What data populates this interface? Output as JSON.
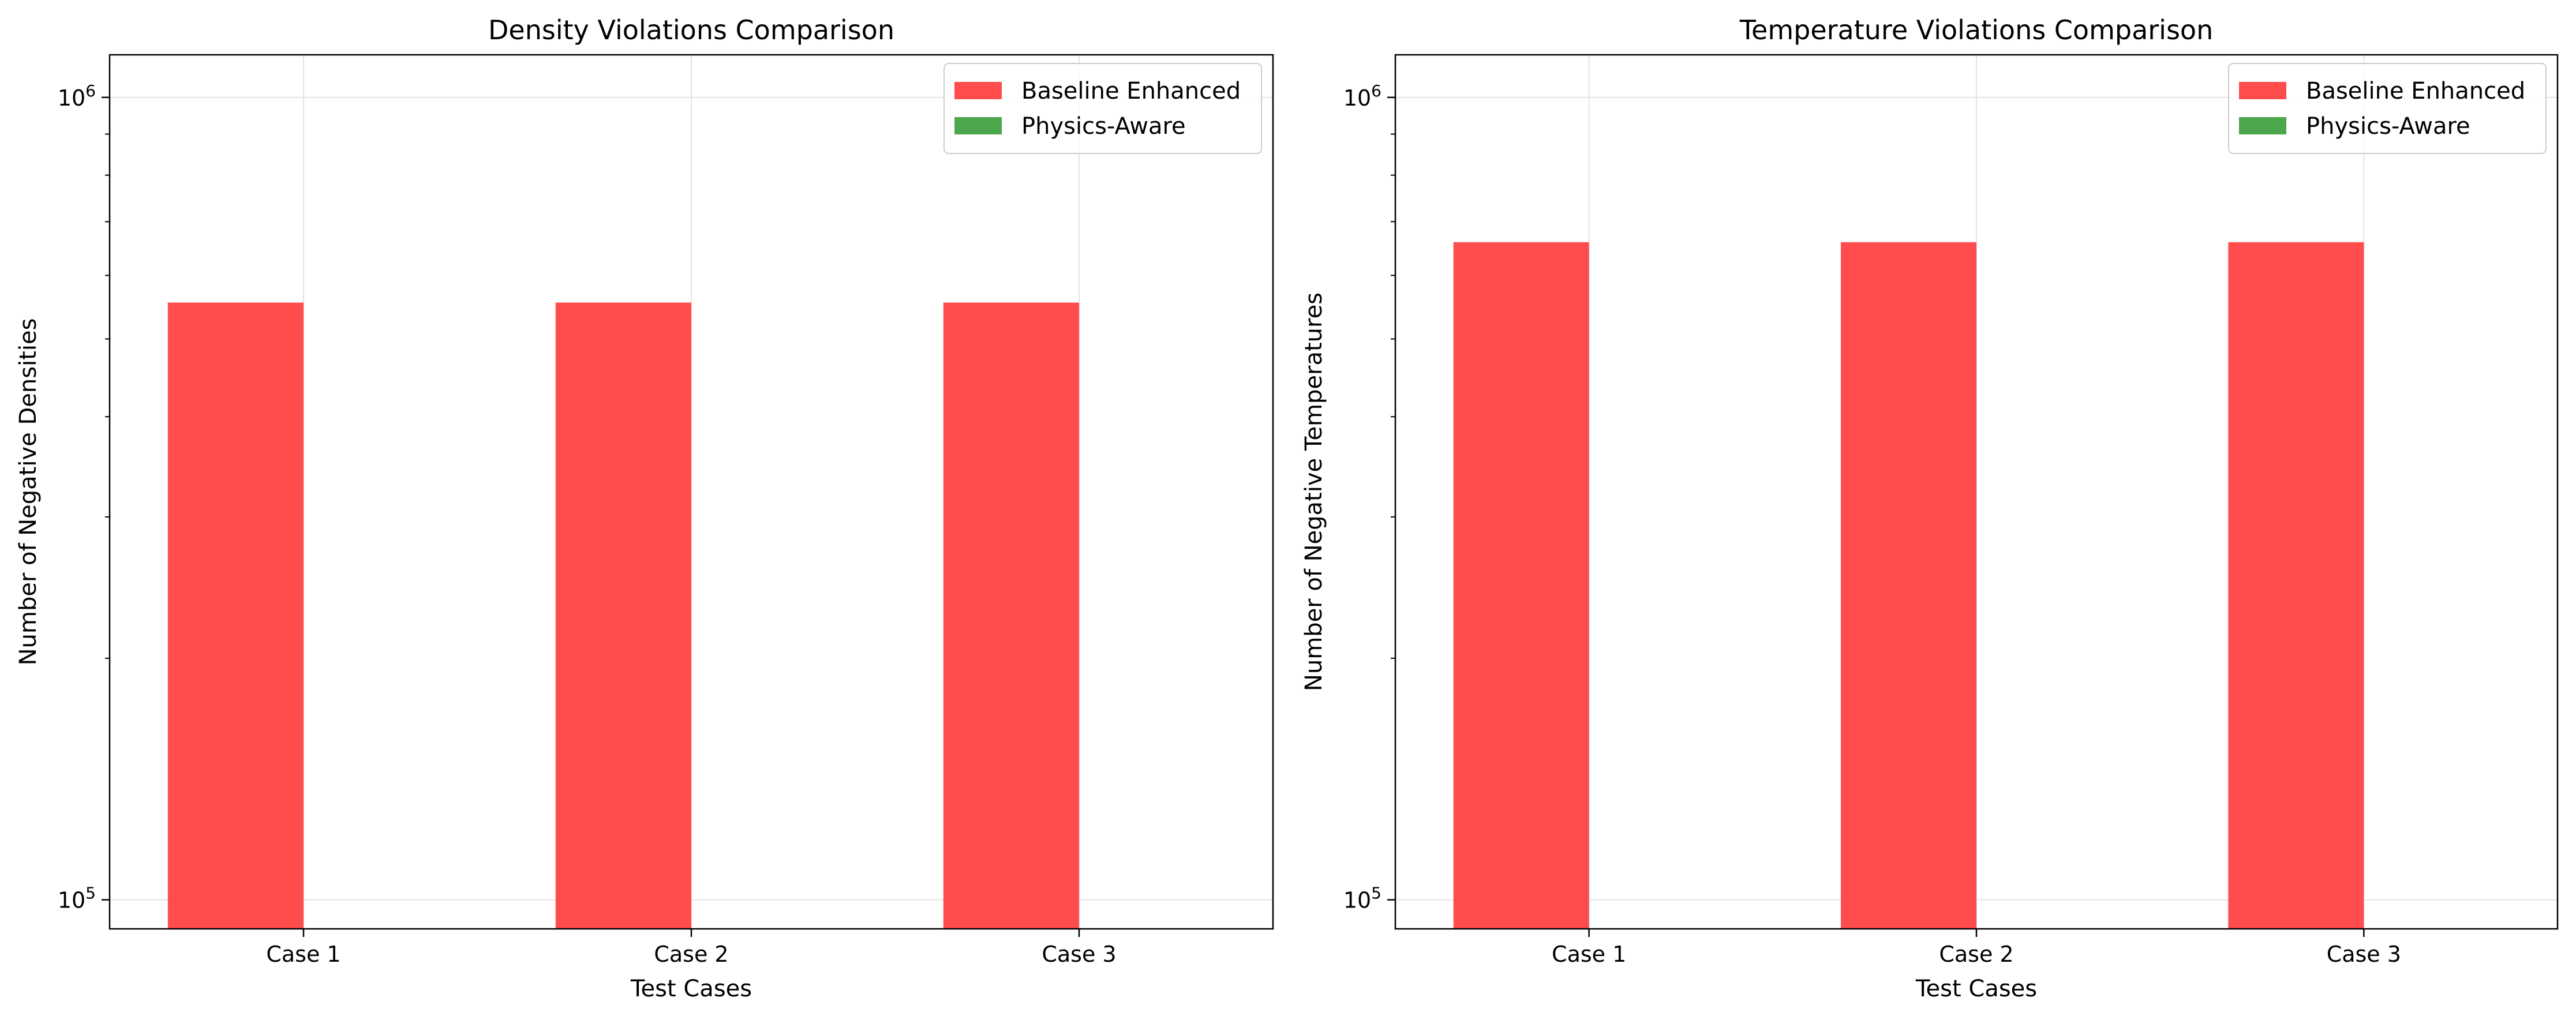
{
  "chart_data": [
    {
      "type": "bar",
      "title": "Density Violations Comparison",
      "xlabel": "Test Cases",
      "ylabel": "Number of Negative Densities",
      "yscale": "log",
      "ylim": [
        92000,
        1130000
      ],
      "y_ticks": [
        {
          "value": 100000,
          "base": "10",
          "exp": "5"
        },
        {
          "value": 1000000,
          "base": "10",
          "exp": "6"
        }
      ],
      "categories": [
        "Case 1",
        "Case 2",
        "Case 3"
      ],
      "series": [
        {
          "name": "Baseline Enhanced",
          "color": "#ff4c4c",
          "values": [
            555000,
            555000,
            555000
          ]
        },
        {
          "name": "Physics-Aware",
          "color": "#4ca64c",
          "values": [
            0,
            0,
            0
          ]
        }
      ],
      "legend": "top-right",
      "grid": true
    },
    {
      "type": "bar",
      "title": "Temperature Violations Comparison",
      "xlabel": "Test Cases",
      "ylabel": "Number of Negative Temperatures",
      "yscale": "log",
      "ylim": [
        92000,
        1130000
      ],
      "y_ticks": [
        {
          "value": 100000,
          "base": "10",
          "exp": "5"
        },
        {
          "value": 1000000,
          "base": "10",
          "exp": "6"
        }
      ],
      "categories": [
        "Case 1",
        "Case 2",
        "Case 3"
      ],
      "series": [
        {
          "name": "Baseline Enhanced",
          "color": "#ff4c4c",
          "values": [
            660000,
            660000,
            660000
          ]
        },
        {
          "name": "Physics-Aware",
          "color": "#4ca64c",
          "values": [
            0,
            0,
            0
          ]
        }
      ],
      "legend": "top-right",
      "grid": true
    }
  ]
}
